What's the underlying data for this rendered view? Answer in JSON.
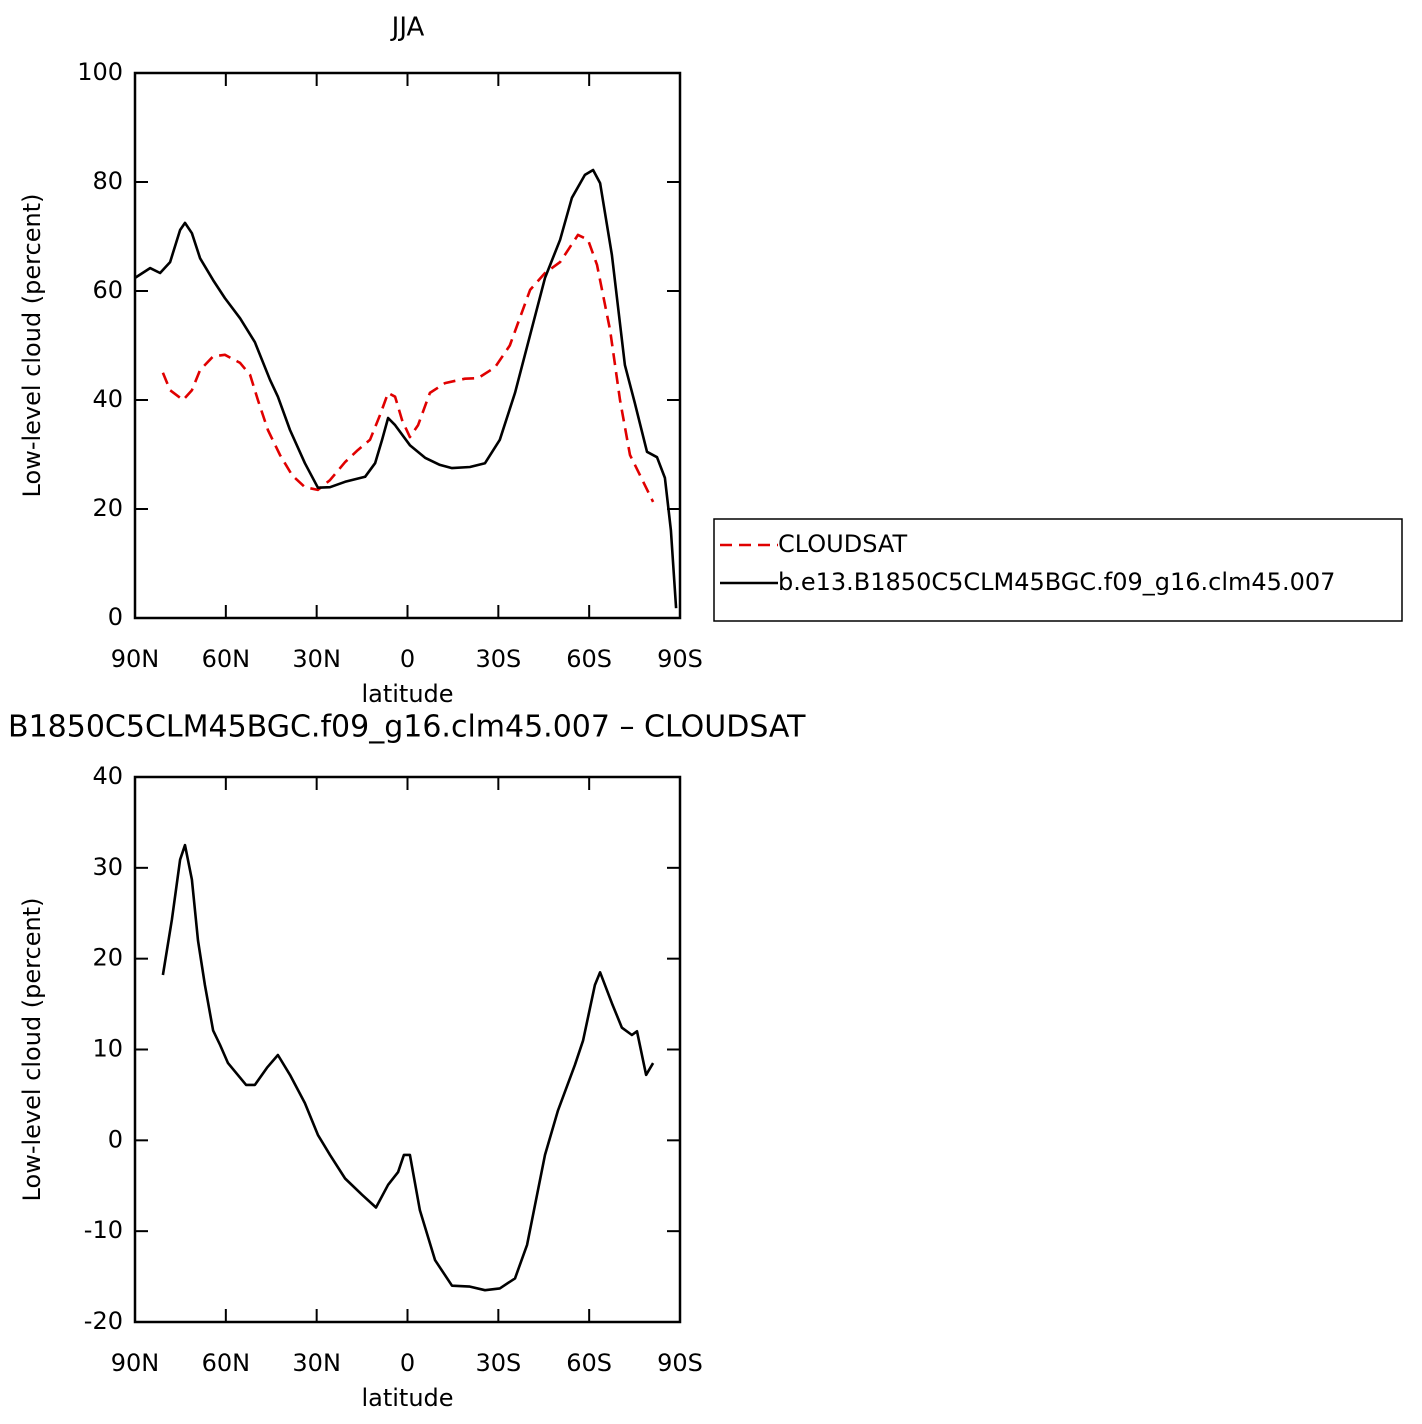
{
  "chart_data": [
    {
      "type": "line",
      "title": "JJA",
      "xlabel": "latitude",
      "ylabel": "Low-level cloud (percent)",
      "xlim": [
        90,
        -90
      ],
      "xticks": [
        {
          "value": 90,
          "label": "90N"
        },
        {
          "value": 60,
          "label": "60N"
        },
        {
          "value": 30,
          "label": "30N"
        },
        0,
        {
          "value": -30,
          "label": "30S"
        },
        {
          "value": -60,
          "label": "60S"
        },
        {
          "value": -90,
          "label": "90S"
        }
      ],
      "ylim": [
        0,
        100
      ],
      "yticks": [
        0,
        20,
        40,
        60,
        80,
        100
      ],
      "legend": "right",
      "series": [
        {
          "name": "CLOUDSAT",
          "color": "#e00000",
          "dashed": true,
          "x": [
            80.8,
            78.4,
            74.1,
            71.2,
            68.5,
            64.2,
            60.3,
            55.3,
            52,
            49.4,
            46.1,
            42.1,
            38.1,
            33.9,
            29.6,
            25.6,
            20.6,
            16.4,
            12.4,
            9.1,
            6.4,
            4.1,
            1.8,
            -0.8,
            -3.5,
            -7.4,
            -12.4,
            -19,
            -23.3,
            -28.9,
            -33.8,
            -40.5,
            -45.4,
            -50.4,
            -56.3,
            -59.6,
            -62.6,
            -66.9,
            -70.2,
            -73.5,
            -76.8,
            -81.1
          ],
          "values": [
            45,
            41.8,
            40,
            41.8,
            45.5,
            48,
            48.3,
            46.8,
            44.6,
            40,
            34.5,
            29.9,
            26.2,
            24,
            23.5,
            25.3,
            28.6,
            30.8,
            32.7,
            37.2,
            41.3,
            40.6,
            36.3,
            33.2,
            35.4,
            41.3,
            43.1,
            43.9,
            44,
            46,
            50,
            60.2,
            63.3,
            65.3,
            70.3,
            69.4,
            64.8,
            52.8,
            40,
            29.9,
            26.2,
            21.3
          ]
        },
        {
          "name": "b.e13.B1850C5CLM45BGC.f09_g16.clm45.007",
          "color": "#000000",
          "dashed": false,
          "x": [
            90,
            85,
            81.7,
            78.4,
            75.1,
            73.5,
            71.2,
            68.5,
            64.2,
            60.3,
            55.3,
            50.4,
            45.4,
            42.8,
            38.8,
            33.9,
            29.6,
            25.6,
            20.6,
            14,
            10.7,
            8.4,
            6.4,
            4.1,
            -0.8,
            -5.8,
            -10.7,
            -14.7,
            -20.6,
            -25.6,
            -30.5,
            -35.5,
            -40.5,
            -45.4,
            -50.4,
            -54.3,
            -58.6,
            -61.3,
            -63.6,
            -67.5,
            -71.8,
            -75.1,
            -79.1,
            -82.4,
            -85,
            -87,
            -88.7
          ],
          "values": [
            62.4,
            64.2,
            63.3,
            65.3,
            71.2,
            72.5,
            70.6,
            66,
            62,
            58.7,
            55,
            50.6,
            43.7,
            40.6,
            34.5,
            28.4,
            23.9,
            24,
            25,
            25.9,
            28.4,
            32.7,
            36.7,
            35.4,
            31.7,
            29.4,
            28.1,
            27.5,
            27.7,
            28.4,
            32.7,
            41.3,
            51.9,
            62.4,
            69.4,
            77.1,
            81.3,
            82.2,
            79.8,
            66.6,
            46.4,
            39.4,
            30.5,
            29.5,
            25.7,
            16.1,
            1.8
          ]
        }
      ]
    },
    {
      "type": "line",
      "title": "B1850C5CLM45BGC.f09_g16.clm45.007 – CLOUDSAT",
      "xlabel": "latitude",
      "ylabel": "Low-level cloud (percent)",
      "xlim": [
        90,
        -90
      ],
      "xticks": [
        {
          "value": 90,
          "label": "90N"
        },
        {
          "value": 60,
          "label": "60N"
        },
        {
          "value": 30,
          "label": "30N"
        },
        0,
        {
          "value": -30,
          "label": "30S"
        },
        {
          "value": -60,
          "label": "60S"
        },
        {
          "value": -90,
          "label": "90S"
        }
      ],
      "ylim": [
        -20,
        40
      ],
      "yticks": [
        -20,
        -10,
        0,
        10,
        20,
        30,
        40
      ],
      "series": [
        {
          "color": "#000000",
          "dashed": false,
          "x": [
            80.8,
            77.8,
            75.1,
            73.5,
            71.2,
            69.2,
            66.9,
            64.2,
            61.9,
            59.3,
            53.3,
            50.4,
            46.4,
            42.8,
            38.8,
            33.9,
            29.6,
            25.6,
            20.6,
            15,
            10.4,
            6.4,
            3.1,
            1.2,
            -0.8,
            -4.1,
            -9.1,
            -14.7,
            -20.6,
            -25.6,
            -30.5,
            -35.5,
            -39.5,
            -45.4,
            -49.7,
            -55.3,
            -58,
            -61.9,
            -63.6,
            -67.5,
            -70.8,
            -74.1,
            -75.8,
            -78.8,
            -81.1
          ],
          "values": [
            18.2,
            24.3,
            30.9,
            32.5,
            28.7,
            22,
            17.1,
            12.1,
            10.5,
            8.5,
            6.1,
            6.1,
            8,
            9.4,
            7.2,
            4.1,
            0.6,
            -1.6,
            -4.2,
            -6,
            -7.4,
            -4.9,
            -3.5,
            -1.6,
            -1.6,
            -7.7,
            -13.2,
            -16,
            -16.1,
            -16.5,
            -16.3,
            -15.2,
            -11.5,
            -1.6,
            3.3,
            8.3,
            11,
            17.1,
            18.5,
            15.1,
            12.4,
            11.6,
            12,
            7.2,
            8.5
          ]
        }
      ]
    }
  ]
}
